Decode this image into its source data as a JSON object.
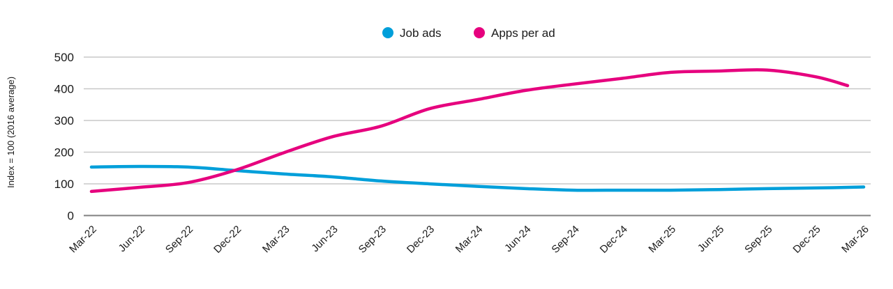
{
  "chart_data": {
    "type": "line",
    "title": "",
    "xlabel": "",
    "ylabel": "Index = 100 (2016 average)",
    "ylim": [
      0,
      500
    ],
    "yticks": [
      0,
      100,
      200,
      300,
      400,
      500
    ],
    "grid": true,
    "legend_position": "top-center",
    "categories": [
      "Mar-22",
      "Jun-22",
      "Sep-22",
      "Dec-22",
      "Mar-23",
      "Jun-23",
      "Sep-23",
      "Dec-23",
      "Mar-24",
      "Jun-24",
      "Sep-24",
      "Dec-24",
      "Mar-25",
      "Jun-25",
      "Sep-25",
      "Dec-25",
      "Mar-26"
    ],
    "series": [
      {
        "name": "Job ads",
        "color": "#009fda",
        "values": [
          153,
          155,
          153,
          142,
          131,
          122,
          109,
          100,
          92,
          85,
          80,
          80,
          80,
          82,
          85,
          87,
          90
        ]
      },
      {
        "name": "Apps per ad",
        "color": "#e6007e",
        "values": [
          76,
          89,
          104,
          144,
          199,
          249,
          282,
          337,
          366,
          395,
          415,
          433,
          452,
          456,
          459,
          438,
          null
        ],
        "last_point": {
          "label": "Feb-26",
          "value": 410
        }
      }
    ]
  }
}
